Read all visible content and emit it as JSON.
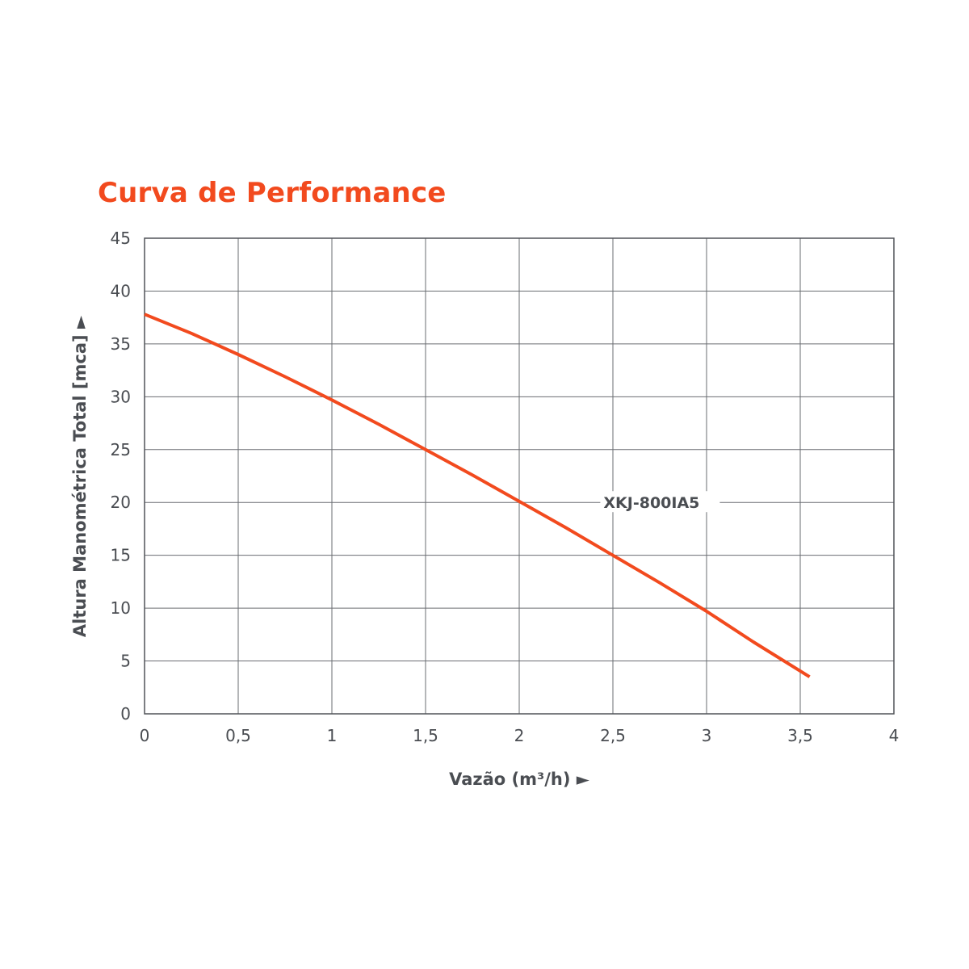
{
  "chart_data": {
    "type": "line",
    "title": "Curva de Performance",
    "xlabel": "Vazão (m³/h) ►",
    "ylabel": "Altura Manométrica Total [mca] ►",
    "xlim": [
      0,
      4
    ],
    "ylim": [
      0,
      45
    ],
    "x_ticks": [
      0,
      0.5,
      1,
      1.5,
      2,
      2.5,
      3,
      3.5,
      4
    ],
    "x_tick_labels": [
      "0",
      "0,5",
      "1",
      "1,5",
      "2",
      "2,5",
      "3",
      "3,5",
      "4"
    ],
    "y_ticks": [
      0,
      5,
      10,
      15,
      20,
      25,
      30,
      35,
      40,
      45
    ],
    "y_tick_labels": [
      "0",
      "5",
      "10",
      "15",
      "20",
      "25",
      "30",
      "35",
      "40",
      "45"
    ],
    "grid": true,
    "series": [
      {
        "name": "XKJ-800IA5",
        "color": "#f24a1e",
        "x": [
          0,
          0.25,
          0.5,
          0.75,
          1,
          1.25,
          1.5,
          1.75,
          2,
          2.25,
          2.5,
          2.75,
          3,
          3.25,
          3.55
        ],
        "y": [
          37.8,
          36.0,
          34.0,
          31.9,
          29.7,
          27.4,
          25.0,
          22.6,
          20.1,
          17.6,
          15.0,
          12.4,
          9.7,
          6.8,
          3.5
        ]
      }
    ],
    "series_label_position": {
      "x": 2.45,
      "y": 20
    }
  }
}
